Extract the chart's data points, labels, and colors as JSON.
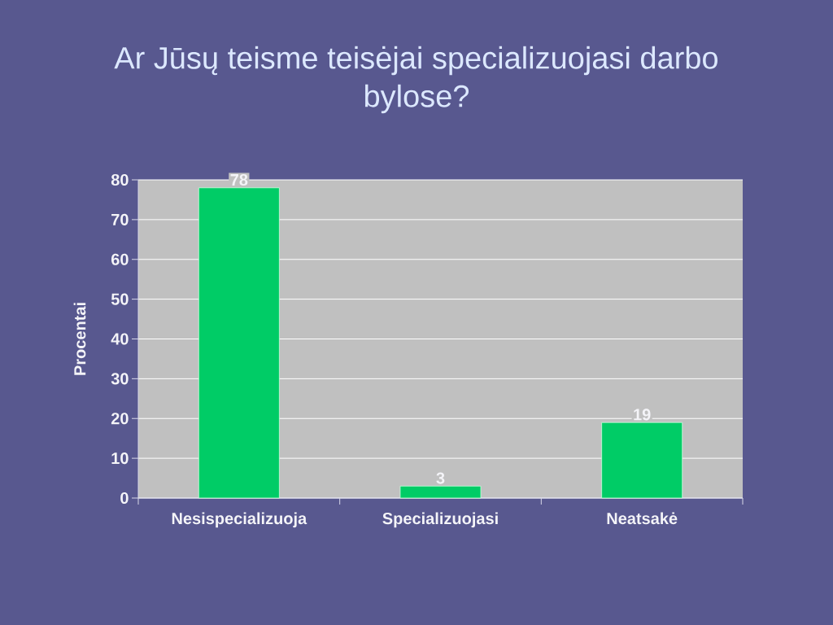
{
  "chart_data": {
    "type": "bar",
    "title": "Ar Jūsų teisme teisėjai specializuojasi darbo bylose?",
    "ylabel": "Procentai",
    "categories": [
      "Nesispecializuoja",
      "Specializuojasi",
      "Neatsakė"
    ],
    "values": [
      78,
      3,
      19
    ],
    "color": "#00cc66",
    "ylim": [
      0,
      80
    ],
    "yticks": [
      0,
      10,
      20,
      30,
      40,
      50,
      60,
      70,
      80
    ],
    "grid": "y",
    "data_labels": true
  }
}
